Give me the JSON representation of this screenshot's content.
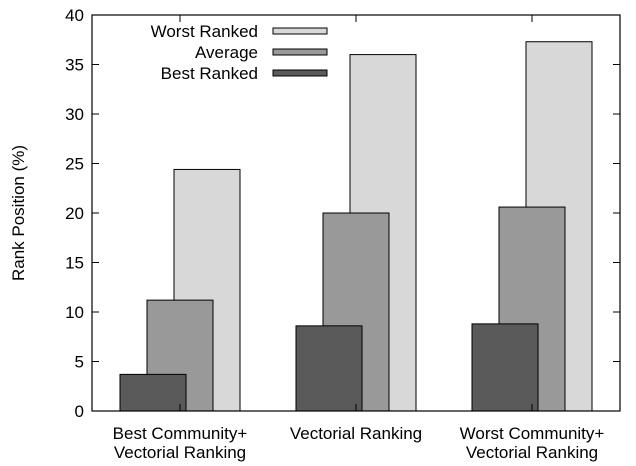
{
  "chart_data": {
    "type": "bar",
    "title": "",
    "xlabel": "",
    "ylabel": "Rank Position (%)",
    "ylim": [
      0,
      40
    ],
    "yticks": [
      0,
      5,
      10,
      15,
      20,
      25,
      30,
      35,
      40
    ],
    "grid": false,
    "legend_position": "top-left",
    "categories": [
      [
        "Best Community+",
        "Vectorial  Ranking"
      ],
      [
        "Vectorial Ranking"
      ],
      [
        "Worst Community+",
        "Vectorial Ranking"
      ]
    ],
    "series": [
      {
        "name": "Best Ranked",
        "color": "#5a5a5a",
        "values": [
          3.7,
          8.6,
          8.8
        ]
      },
      {
        "name": "Average",
        "color": "#999999",
        "values": [
          11.2,
          20.0,
          20.6
        ]
      },
      {
        "name": "Worst Ranked",
        "color": "#d8d8d8",
        "values": [
          24.4,
          36.0,
          37.3
        ]
      }
    ],
    "legend_order": [
      "Worst Ranked",
      "Average",
      "Best Ranked"
    ]
  }
}
